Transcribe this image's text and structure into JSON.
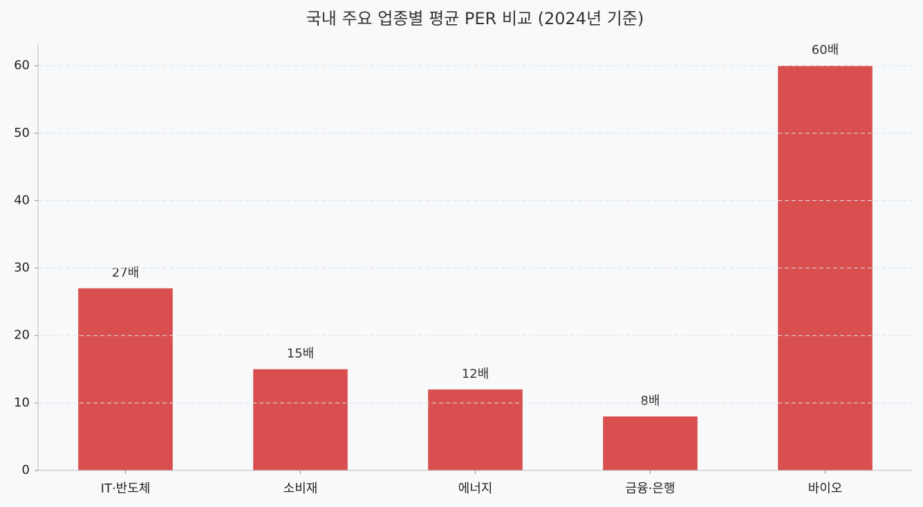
{
  "chart_data": {
    "type": "bar",
    "title": "국내 주요 업종별 평균 PER 비교 (2024년 기준)",
    "categories": [
      "IT·반도체",
      "소비재",
      "에너지",
      "금융·은행",
      "바이오"
    ],
    "values": [
      27,
      15,
      12,
      8,
      60
    ],
    "value_labels": [
      "27배",
      "15배",
      "12배",
      "8배",
      "60배"
    ],
    "color": "#d94f4f",
    "ylim": [
      0,
      63.3
    ],
    "yticks": [
      0,
      10,
      20,
      30,
      40,
      50,
      60
    ],
    "grid": true
  }
}
